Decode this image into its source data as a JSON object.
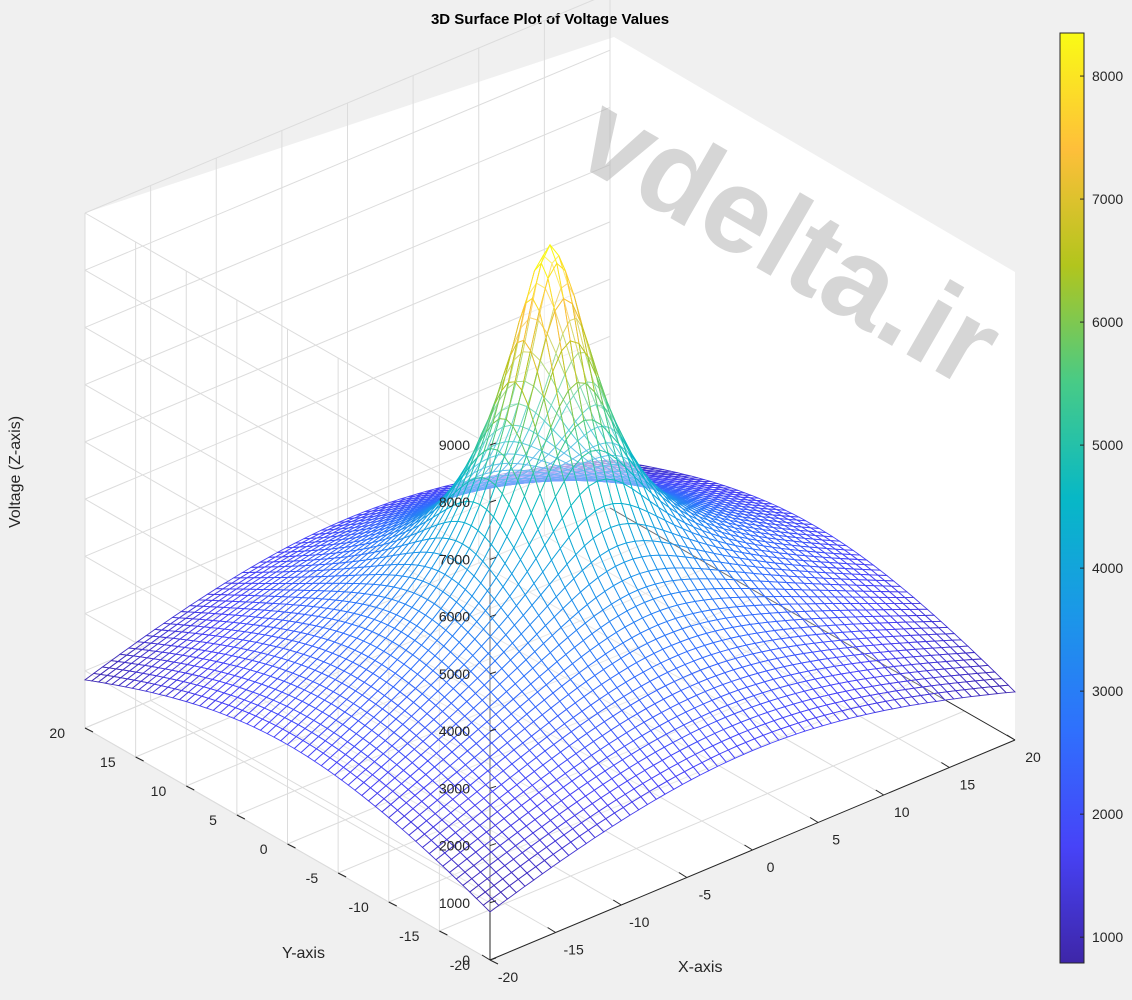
{
  "chart_data": {
    "type": "surface",
    "title": "3D Surface Plot of Voltage Values",
    "xlabel": "X-axis",
    "ylabel": "Y-axis",
    "zlabel": "Voltage (Z-axis)",
    "xlim": [
      -20,
      20
    ],
    "ylim": [
      -20,
      20
    ],
    "zlim": [
      0,
      9000
    ],
    "xticks": [
      "-20",
      "-15",
      "-10",
      "-5",
      "0",
      "5",
      "10",
      "15",
      "20"
    ],
    "yticks": [
      "-20",
      "-15",
      "-10",
      "-5",
      "0",
      "5",
      "10",
      "15",
      "20"
    ],
    "zticks": [
      "0",
      "1000",
      "2000",
      "3000",
      "4000",
      "5000",
      "6000",
      "7000",
      "8000",
      "9000"
    ],
    "clim": [
      790,
      8350
    ],
    "colorbar_ticks": [
      "1000",
      "2000",
      "3000",
      "4000",
      "5000",
      "6000",
      "7000",
      "8000"
    ],
    "colormap": "parula",
    "grid": true,
    "peak_value": 7900,
    "corner_value": 800
  },
  "watermark": "vdelta.ir"
}
